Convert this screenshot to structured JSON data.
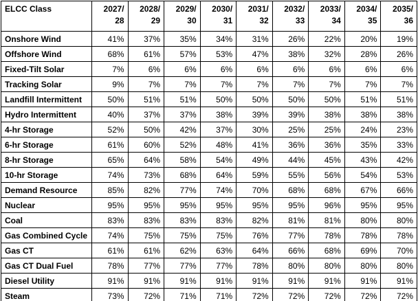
{
  "table": {
    "header": [
      "ELCC Class",
      "2027/\n28",
      "2028/\n29",
      "2029/\n30",
      "2030/\n31",
      "2031/\n32",
      "2032/\n33",
      "2033/\n34",
      "2034/\n35",
      "2035/\n36"
    ],
    "rows": [
      [
        "Onshore Wind",
        "41%",
        "37%",
        "35%",
        "34%",
        "31%",
        "26%",
        "22%",
        "20%",
        "19%"
      ],
      [
        "Offshore Wind",
        "68%",
        "61%",
        "57%",
        "53%",
        "47%",
        "38%",
        "32%",
        "28%",
        "26%"
      ],
      [
        "Fixed-Tilt Solar",
        "7%",
        "6%",
        "6%",
        "6%",
        "6%",
        "6%",
        "6%",
        "6%",
        "6%"
      ],
      [
        "Tracking Solar",
        "9%",
        "7%",
        "7%",
        "7%",
        "7%",
        "7%",
        "7%",
        "7%",
        "7%"
      ],
      [
        "Landfill Intermittent",
        "50%",
        "51%",
        "51%",
        "50%",
        "50%",
        "50%",
        "50%",
        "51%",
        "51%"
      ],
      [
        "Hydro Intermittent",
        "40%",
        "37%",
        "37%",
        "38%",
        "39%",
        "39%",
        "38%",
        "38%",
        "38%"
      ],
      [
        "4-hr Storage",
        "52%",
        "50%",
        "42%",
        "37%",
        "30%",
        "25%",
        "25%",
        "24%",
        "23%"
      ],
      [
        "6-hr Storage",
        "61%",
        "60%",
        "52%",
        "48%",
        "41%",
        "36%",
        "36%",
        "35%",
        "33%"
      ],
      [
        "8-hr Storage",
        "65%",
        "64%",
        "58%",
        "54%",
        "49%",
        "44%",
        "45%",
        "43%",
        "42%"
      ],
      [
        "10-hr Storage",
        "74%",
        "73%",
        "68%",
        "64%",
        "59%",
        "55%",
        "56%",
        "54%",
        "53%"
      ],
      [
        "Demand Resource",
        "85%",
        "82%",
        "77%",
        "74%",
        "70%",
        "68%",
        "68%",
        "67%",
        "66%"
      ],
      [
        "Nuclear",
        "95%",
        "95%",
        "95%",
        "95%",
        "95%",
        "95%",
        "96%",
        "95%",
        "95%"
      ],
      [
        "Coal",
        "83%",
        "83%",
        "83%",
        "83%",
        "82%",
        "81%",
        "81%",
        "80%",
        "80%"
      ],
      [
        "Gas Combined Cycle",
        "74%",
        "75%",
        "75%",
        "75%",
        "76%",
        "77%",
        "78%",
        "78%",
        "78%"
      ],
      [
        "Gas CT",
        "61%",
        "61%",
        "62%",
        "63%",
        "64%",
        "66%",
        "68%",
        "69%",
        "70%"
      ],
      [
        "Gas CT Dual Fuel",
        "78%",
        "77%",
        "77%",
        "77%",
        "78%",
        "80%",
        "80%",
        "80%",
        "80%"
      ],
      [
        "Diesel Utility",
        "91%",
        "91%",
        "91%",
        "91%",
        "91%",
        "91%",
        "91%",
        "91%",
        "91%"
      ],
      [
        "Steam",
        "73%",
        "72%",
        "71%",
        "71%",
        "72%",
        "72%",
        "72%",
        "72%",
        "72%"
      ]
    ]
  }
}
